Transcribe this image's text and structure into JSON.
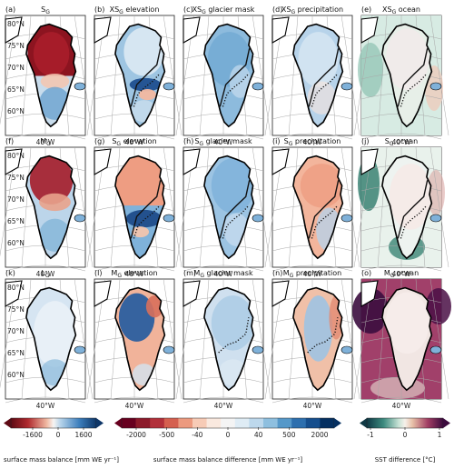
{
  "colors": {
    "smb_neg": "#7f0d1c",
    "smb_pos": "#1d5fa6",
    "diff_neg": "#7a0b1b",
    "diff_pos": "#0c3f7e",
    "sst_neg": "#1e5a5a",
    "sst_pos": "#5a1445",
    "gray_land": "#b8b8b8",
    "lon_lat_grid": "#a8a8a8"
  },
  "lat_labels": [
    "80°N",
    "75°N",
    "70°N",
    "65°N",
    "60°N"
  ],
  "lon_label": "40°W",
  "panels": [
    {
      "letter": "(a)",
      "title": "S_G",
      "kind": "smb_a"
    },
    {
      "letter": "(b)",
      "title": "XS_G elevation",
      "kind": "b"
    },
    {
      "letter": "(c)",
      "title": "XS_G glacier mask",
      "kind": "c"
    },
    {
      "letter": "(d)",
      "title": "XS_G precipitation",
      "kind": "d"
    },
    {
      "letter": "(e)",
      "title": "XS_G ocean",
      "kind": "e"
    },
    {
      "letter": "(f)",
      "title": "M_G",
      "kind": "smb_f"
    },
    {
      "letter": "(g)",
      "title": "S_G elevation",
      "kind": "g"
    },
    {
      "letter": "(h)",
      "title": "S_G glacier mask",
      "kind": "h"
    },
    {
      "letter": "(i)",
      "title": "S_G precipitation",
      "kind": "i"
    },
    {
      "letter": "(j)",
      "title": "S_G ocean",
      "kind": "j"
    },
    {
      "letter": "(k)",
      "title": "L_G",
      "kind": "smb_k"
    },
    {
      "letter": "(l)",
      "title": "M_G elevation",
      "kind": "l"
    },
    {
      "letter": "(m)",
      "title": "M_G glacier mask",
      "kind": "m"
    },
    {
      "letter": "(n)",
      "title": "M_G precipitation",
      "kind": "n"
    },
    {
      "letter": "(o)",
      "title": "M_G ocean",
      "kind": "o"
    }
  ],
  "colorbars": {
    "smb": {
      "ticks": [
        "-1600",
        "0",
        "1600"
      ],
      "label": "surface mass balance [mm WE yr⁻¹]"
    },
    "diff": {
      "ticks": [
        "-2000",
        "-500",
        "-40",
        "0",
        "40",
        "500",
        "2000"
      ],
      "label": "surface mass balance difference [mm WE yr⁻¹]"
    },
    "sst": {
      "ticks": [
        "-1",
        "0",
        "1"
      ],
      "label": "SST difference [°C]"
    }
  }
}
